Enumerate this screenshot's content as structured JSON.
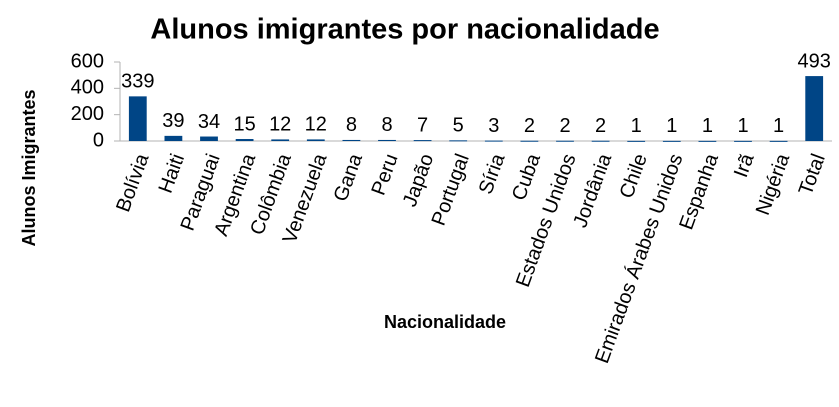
{
  "chart_data": {
    "type": "bar",
    "title": "Alunos imigrantes por nacionalidade",
    "x_label": "Nacionalidade",
    "y_label": "Alunos Imigrantes",
    "categories": [
      "Bolívia",
      "Haiti",
      "Paraguai",
      "Argentina",
      "Colômbia",
      "Venezuela",
      "Gana",
      "Peru",
      "Japão",
      "Portugal",
      "Síria",
      "Cuba",
      "Estados Unidos",
      "Jordânia",
      "Chile",
      "Emirados Árabes Unidos",
      "Espanha",
      "Irã",
      "Nigéria",
      "Total"
    ],
    "values": [
      339,
      39,
      34,
      15,
      12,
      12,
      8,
      8,
      7,
      5,
      3,
      2,
      2,
      2,
      1,
      1,
      1,
      1,
      1,
      493
    ],
    "color": "#004586",
    "ylim": [
      0,
      600
    ],
    "yticks": [
      0,
      200,
      400,
      600
    ],
    "grid": false
  }
}
